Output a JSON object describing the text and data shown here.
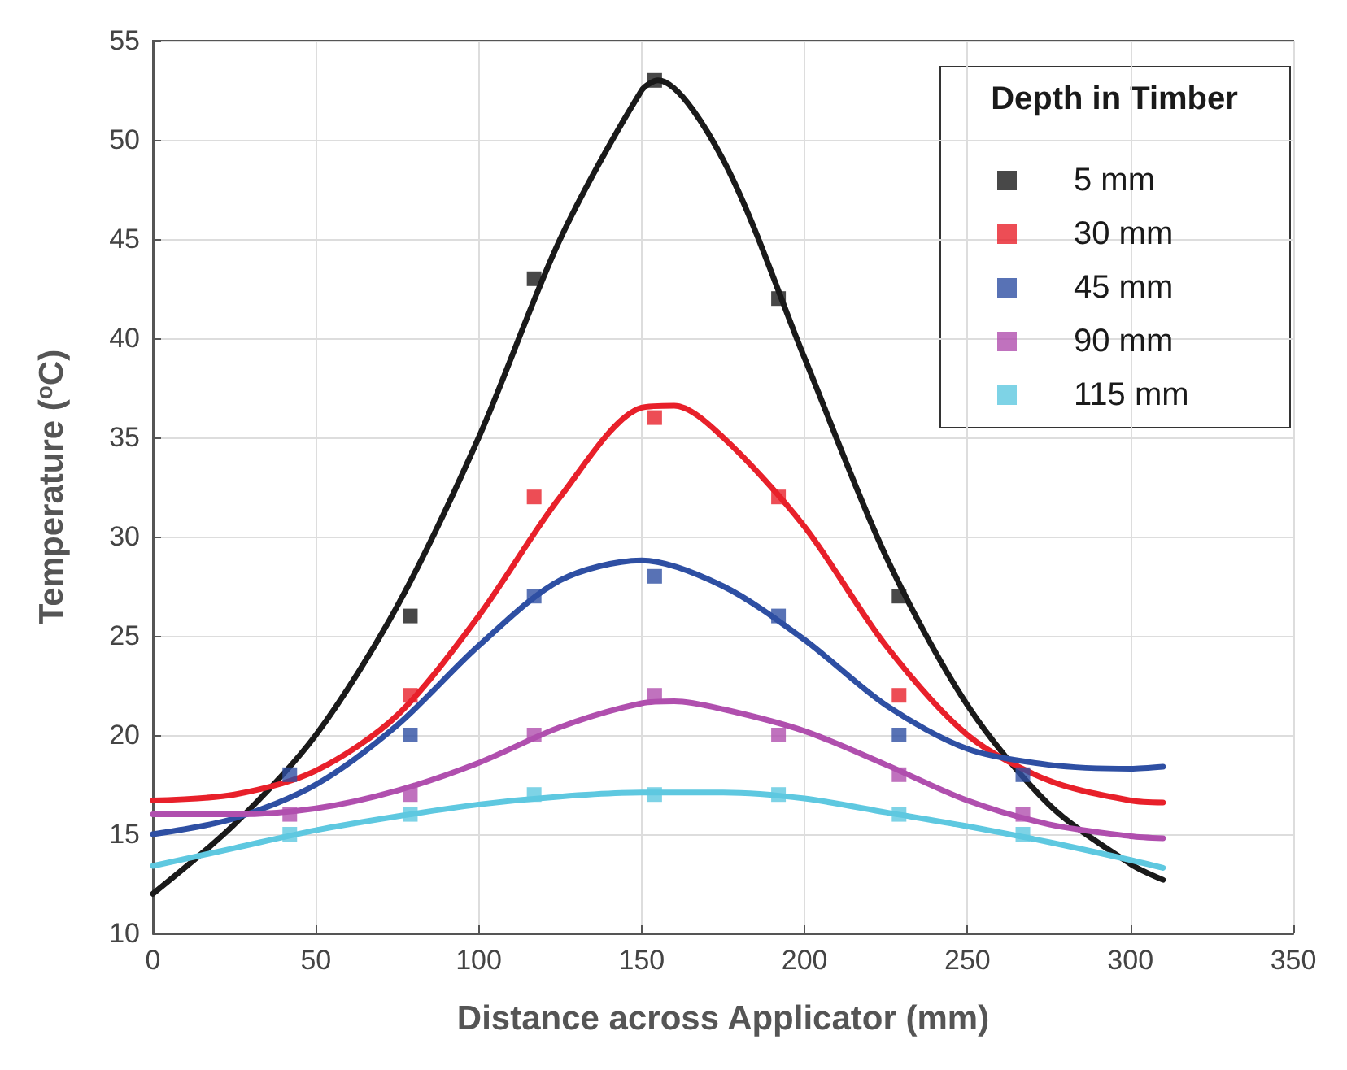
{
  "chart_data": {
    "type": "scatter",
    "xlabel": "Distance across Applicator (mm)",
    "ylabel": "Temperature ($^{o}$C)",
    "legend_title": "Depth in Timber",
    "xlim": [
      0,
      350
    ],
    "xticks": [
      0,
      50,
      100,
      150,
      200,
      250,
      300,
      350
    ],
    "ylim": [
      10,
      55
    ],
    "yticks": [
      10,
      15,
      20,
      25,
      30,
      35,
      40,
      45,
      50,
      55
    ],
    "grid": true,
    "legend": "top right",
    "series": [
      {
        "name": "5 mm",
        "marker": "square",
        "color": "#1a1a1a",
        "x": [
          79,
          117,
          154,
          192,
          229
        ],
        "values": [
          26,
          43,
          53,
          42,
          27
        ]
      },
      {
        "name": "30 mm",
        "marker": "square",
        "color": "#e8202a",
        "x": [
          79,
          117,
          154,
          192,
          229
        ],
        "values": [
          22,
          32,
          36,
          32,
          22
        ]
      },
      {
        "name": "45 mm",
        "marker": "square",
        "color": "#2e4fa3",
        "x": [
          42,
          79,
          117,
          154,
          192,
          229,
          267
        ],
        "values": [
          18,
          20,
          27,
          28,
          26,
          20,
          18
        ]
      },
      {
        "name": "90 mm",
        "marker": "square",
        "color": "#b04fae",
        "x": [
          42,
          79,
          117,
          154,
          192,
          229,
          267
        ],
        "values": [
          16,
          17,
          20,
          22,
          20,
          18,
          16
        ]
      },
      {
        "name": "115 mm",
        "marker": "square",
        "color": "#5ec8e0",
        "x": [
          42,
          79,
          117,
          154,
          192,
          229,
          267
        ],
        "values": [
          15,
          16,
          17,
          17,
          17,
          16,
          15
        ]
      },
      {
        "type": "line",
        "marker": "none",
        "color": "#1a1a1a",
        "x": [
          0,
          25,
          50,
          75,
          100,
          125,
          150,
          155,
          175,
          200,
          225,
          250,
          275,
          300,
          310
        ],
        "values": [
          12,
          15.5,
          20,
          26.5,
          35,
          45,
          52.5,
          53,
          49,
          39,
          29,
          21.5,
          16.5,
          13.5,
          12.7
        ]
      },
      {
        "type": "line",
        "marker": "none",
        "color": "#e8202a",
        "x": [
          0,
          25,
          50,
          75,
          100,
          125,
          150,
          160,
          175,
          200,
          225,
          250,
          275,
          300,
          310
        ],
        "values": [
          16.7,
          17,
          18.2,
          21,
          26,
          32,
          36.5,
          36.6,
          35,
          30.5,
          24.5,
          20,
          17.7,
          16.7,
          16.6
        ]
      },
      {
        "type": "line",
        "marker": "none",
        "color": "#2e4fa3",
        "x": [
          0,
          25,
          50,
          75,
          100,
          125,
          150,
          175,
          200,
          225,
          250,
          275,
          300,
          310
        ],
        "values": [
          15,
          15.8,
          17.5,
          20.5,
          24.5,
          27.8,
          28.8,
          27.5,
          24.8,
          21.5,
          19.3,
          18.5,
          18.3,
          18.4
        ]
      },
      {
        "type": "line",
        "marker": "none",
        "color": "#b04fae",
        "x": [
          0,
          25,
          50,
          75,
          100,
          125,
          150,
          160,
          175,
          200,
          225,
          250,
          275,
          300,
          310
        ],
        "values": [
          16,
          16,
          16.3,
          17.2,
          18.6,
          20.4,
          21.6,
          21.7,
          21.3,
          20.2,
          18.5,
          16.7,
          15.5,
          14.9,
          14.8
        ]
      },
      {
        "type": "line",
        "marker": "none",
        "color": "#5ec8e0",
        "x": [
          0,
          25,
          50,
          75,
          100,
          125,
          150,
          175,
          200,
          225,
          250,
          275,
          300,
          310
        ],
        "values": [
          13.4,
          14.3,
          15.2,
          15.9,
          16.5,
          16.9,
          17.1,
          17.1,
          16.8,
          16.1,
          15.4,
          14.6,
          13.7,
          13.3
        ]
      }
    ]
  }
}
